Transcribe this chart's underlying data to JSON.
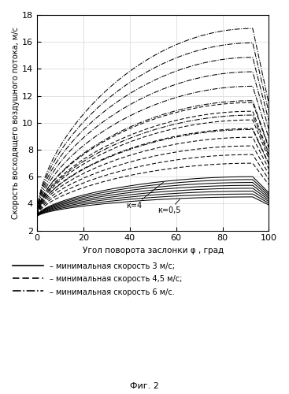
{
  "xlabel": "Угол поворота заслонки φ , град",
  "ylabel": "Скорость восходящего воздушного потока, м/с",
  "figcaption": "Фиг. 2",
  "xlim": [
    0,
    100
  ],
  "ylim": [
    2,
    18
  ],
  "xticks": [
    0,
    20,
    40,
    60,
    80,
    100
  ],
  "yticks": [
    2,
    4,
    6,
    8,
    10,
    12,
    14,
    16,
    18
  ],
  "v_min_solid": 3.0,
  "v_min_dashed": 4.5,
  "v_min_dashdot": 6.0,
  "k_values": [
    0.5,
    1.0,
    1.5,
    2.0,
    2.5,
    3.0,
    3.5,
    4.0
  ],
  "legend_solid": "– минимальная скорость 3 м/с;",
  "legend_dashed": "– минимальная скорость 4,5 м/с;",
  "legend_dashdot": "– минимальная скорость 6 м/с.",
  "annotation_k4": "к=4",
  "annotation_k05": "к=0,5",
  "color": "#000000",
  "background": "#ffffff"
}
